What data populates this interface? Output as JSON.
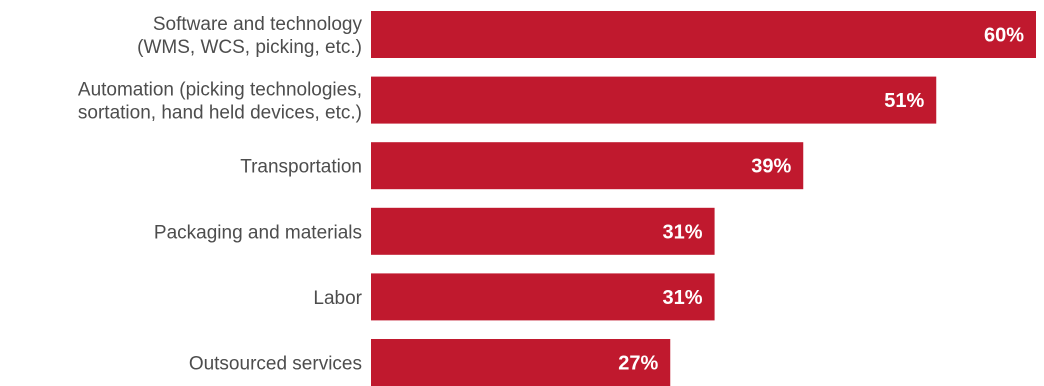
{
  "chart_data": {
    "type": "bar",
    "orientation": "horizontal",
    "categories": [
      [
        "Software and technology",
        "(WMS, WCS, picking, etc.)"
      ],
      [
        "Automation (picking technologies,",
        "sortation, hand held devices, etc.)"
      ],
      [
        "Transportation"
      ],
      [
        "Packaging and materials"
      ],
      [
        "Labor"
      ],
      [
        "Outsourced services"
      ]
    ],
    "values": [
      60,
      51,
      39,
      31,
      31,
      27
    ],
    "value_labels": [
      "60%",
      "51%",
      "39%",
      "31%",
      "31%",
      "27%"
    ],
    "xlim": [
      0,
      60
    ],
    "grid": false,
    "legend": "none",
    "bar_color": "#c0192e",
    "value_label_color": "#ffffff",
    "label_color": "#4d4d4d"
  }
}
